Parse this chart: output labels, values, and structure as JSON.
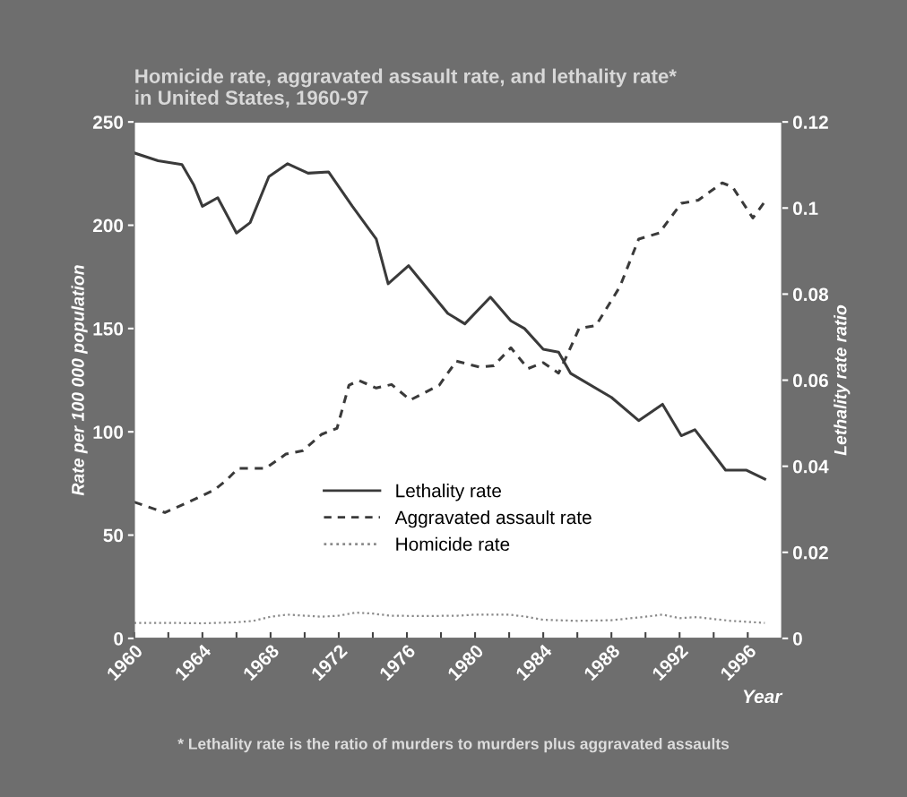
{
  "chart_data": {
    "type": "line",
    "title": "Homicide rate, aggravated assault rate, and lethality rate*\nin United States, 1960-97",
    "xlabel": "Year",
    "ylabel": "Rate per 100 000 population",
    "y2label": "Lethality rate ratio",
    "xlim": [
      1960,
      1998
    ],
    "xticks": [
      1960,
      {
        "value": 1962,
        "label": null
      },
      1964,
      {
        "value": 1966,
        "label": null
      },
      1968,
      {
        "value": 1970,
        "label": null
      },
      1972,
      {
        "value": 1974,
        "label": null
      },
      1976,
      {
        "value": 1978,
        "label": null
      },
      1980,
      {
        "value": 1982,
        "label": null
      },
      1984,
      {
        "value": 1986,
        "label": null
      },
      1988,
      {
        "value": 1990,
        "label": null
      },
      1992,
      {
        "value": 1994,
        "label": null
      },
      1996
    ],
    "ylim": [
      0,
      250
    ],
    "yticks": [
      0,
      50,
      100,
      150,
      200,
      250
    ],
    "y2lim": [
      0,
      0.12
    ],
    "y2ticks": [
      0,
      0.02,
      0.04,
      0.06,
      0.08,
      0.1,
      0.12
    ],
    "legend": "bottom",
    "grid": false,
    "annotations": [
      "* Lethality rate is the ratio of murders to murders plus aggravated assaults"
    ],
    "series": [
      {
        "name": "Lethality rate",
        "color": "#3a3a3a",
        "line_style": "solid",
        "axis": "y2",
        "x": [
          1960,
          1961.4,
          1962.8,
          1963.5,
          1964,
          1964.9,
          1966,
          1966.8,
          1967.9,
          1969,
          1970.2,
          1971.4,
          1972.8,
          1974.2,
          1974.9,
          1976.1,
          1978.4,
          1979.4,
          1980.9,
          1982.1,
          1982.9,
          1984,
          1984.9,
          1985.6,
          1988,
          1989.6,
          1991,
          1992.1,
          1992.9,
          1994.7,
          1995.9,
          1997
        ],
        "values": [
          0.1128,
          0.111,
          0.1101,
          0.1053,
          0.1004,
          0.1024,
          0.0942,
          0.0966,
          0.1073,
          0.1103,
          0.1081,
          0.1084,
          0.1004,
          0.0928,
          0.0824,
          0.0866,
          0.0755,
          0.0731,
          0.0793,
          0.0738,
          0.072,
          0.0672,
          0.0665,
          0.0616,
          0.056,
          0.0506,
          0.0544,
          0.0471,
          0.0485,
          0.0391,
          0.0391,
          0.037
        ]
      },
      {
        "name": "Aggravated assault rate",
        "color": "#3a3a3a",
        "line_style": "dashed",
        "axis": "y",
        "x": [
          1960,
          1961.8,
          1963.3,
          1964.7,
          1965.4,
          1966.1,
          1967.7,
          1968.9,
          1969.9,
          1971,
          1971.9,
          1972.6,
          1973.2,
          1974.2,
          1975.1,
          1976.2,
          1977.9,
          1978.9,
          1980.3,
          1981.1,
          1982.1,
          1983.1,
          1984,
          1984.9,
          1985.4,
          1986.1,
          1987.1,
          1988.5,
          1989.6,
          1990.8,
          1992.1,
          1993.1,
          1994.5,
          1995.1,
          1996.3,
          1997
        ],
        "values": [
          66,
          60.9,
          66.4,
          71.9,
          76.5,
          82.3,
          82.3,
          89.2,
          90.9,
          98.8,
          101.7,
          122.6,
          124.8,
          121.2,
          122.9,
          115.4,
          122.6,
          134.2,
          131.3,
          132,
          140.7,
          130.6,
          133.5,
          128.4,
          137.1,
          150,
          151.5,
          170.3,
          193.3,
          196.2,
          210.6,
          212.1,
          220.5,
          218.6,
          203.5,
          211.4
        ]
      },
      {
        "name": "Homicide rate",
        "color": "#8a8a8a",
        "line_style": "dotted",
        "axis": "y",
        "x": [
          1960,
          1962,
          1964,
          1966,
          1967,
          1968,
          1969,
          1971,
          1972,
          1973,
          1974,
          1975,
          1977,
          1979,
          1980,
          1982,
          1983,
          1984,
          1986,
          1988,
          1990,
          1991,
          1992,
          1993,
          1995,
          1997
        ],
        "values": [
          7.5,
          7.5,
          7.3,
          7.8,
          8.5,
          10.5,
          11.5,
          10.5,
          11,
          12.5,
          12,
          11,
          10.8,
          11,
          11.5,
          11.5,
          10.5,
          9,
          8.5,
          8.8,
          10.5,
          11.5,
          9.8,
          10.3,
          8.5,
          7.5
        ]
      }
    ]
  }
}
